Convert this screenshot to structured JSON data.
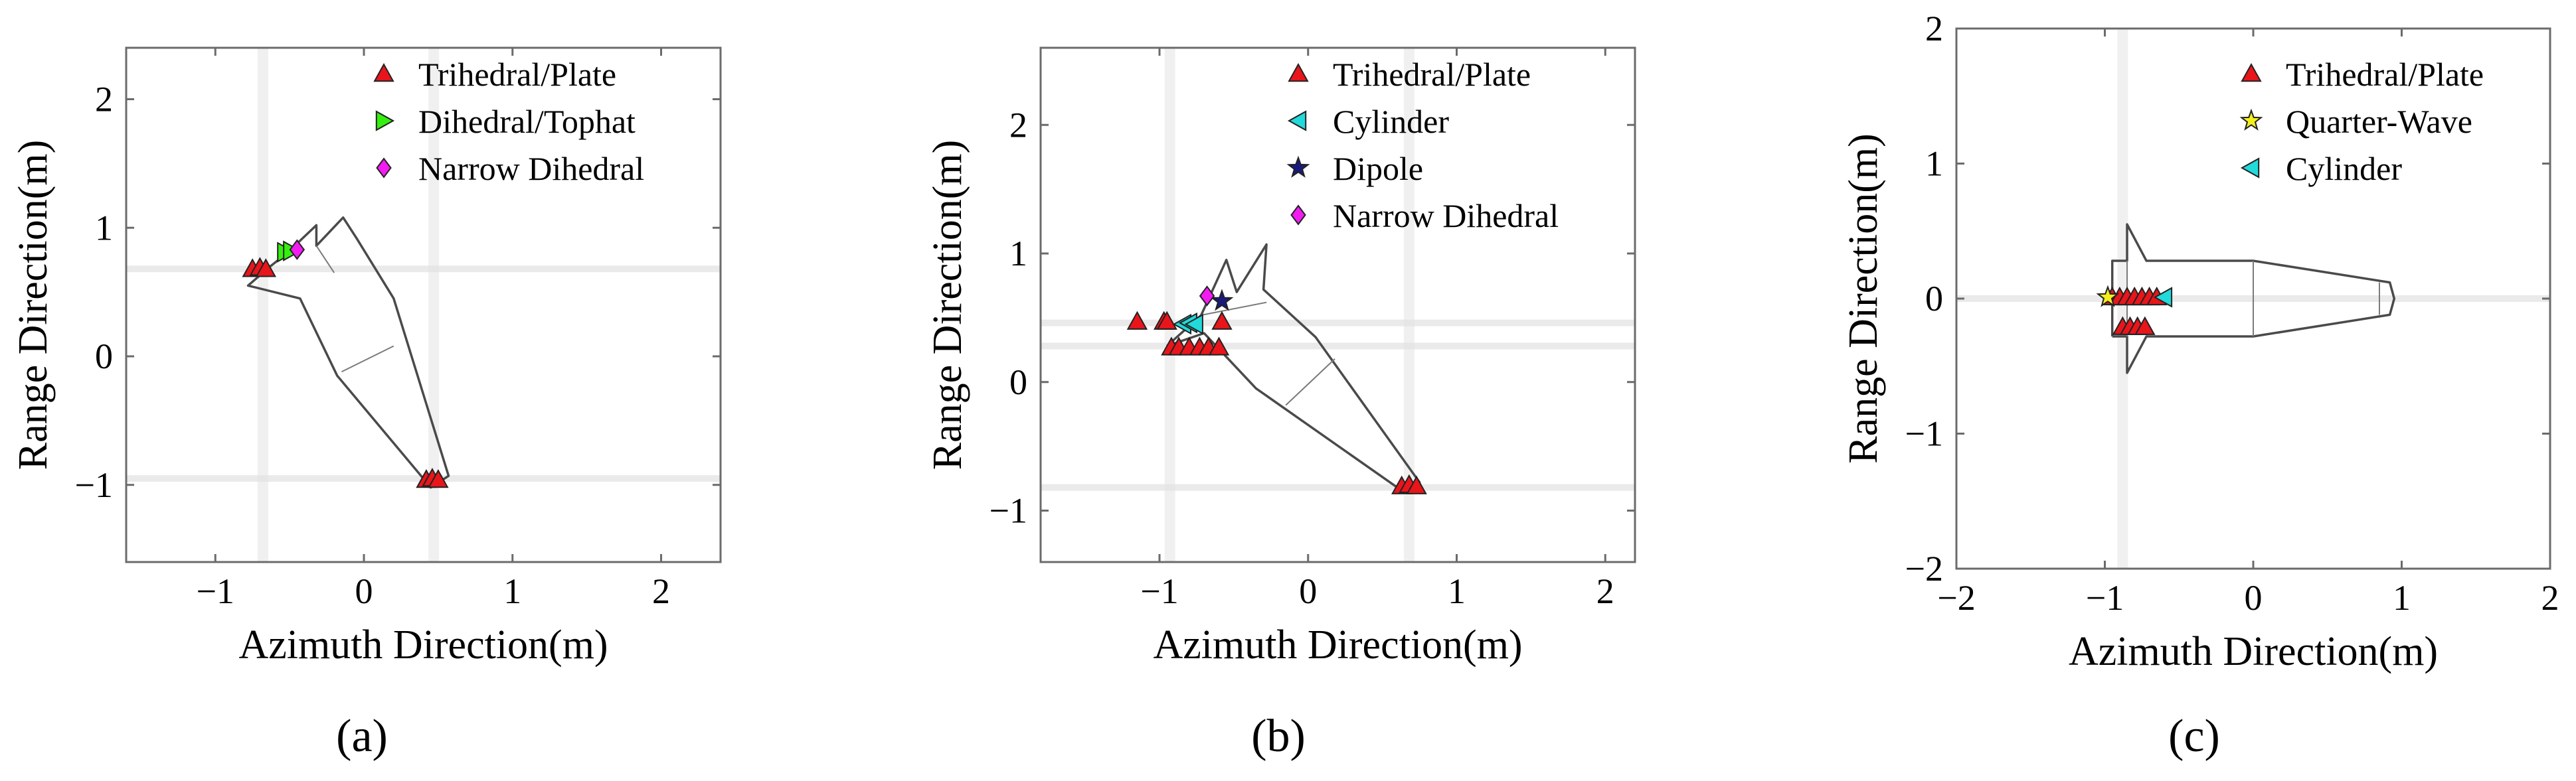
{
  "colors": {
    "trihedral": "#e8151b",
    "dihedral": "#35f00f",
    "narrow_dihedral": "#f21cf2",
    "cylinder": "#22dada",
    "dipole": "#1a1a7c",
    "quarter_wave": "#f5ef1e"
  },
  "chart_data": [
    {
      "type": "scatter",
      "panel": "(a)",
      "xlabel": "Azimuth Direction(m)",
      "ylabel": "Range Direction(m)",
      "xlim": [
        -1.6,
        2.4
      ],
      "ylim": [
        -1.6,
        2.4
      ],
      "xticks": [
        -1,
        0,
        1,
        2
      ],
      "xtick_labels": [
        "−1",
        "0",
        "1",
        "2"
      ],
      "yticks": [
        -1,
        0,
        1,
        2
      ],
      "ytick_labels": [
        "−1",
        "0",
        "1",
        "2"
      ],
      "legend_position": "top-right",
      "outline": [
        [
          -0.63,
          0.7
        ],
        [
          -0.52,
          0.8
        ],
        [
          -0.32,
          1.02
        ],
        [
          -0.32,
          0.86
        ],
        [
          -0.14,
          1.08
        ],
        [
          -0.05,
          0.92
        ],
        [
          0.2,
          0.45
        ],
        [
          0.57,
          -0.93
        ],
        [
          0.45,
          -1.02
        ],
        [
          -0.18,
          -0.15
        ],
        [
          -0.43,
          0.45
        ],
        [
          -0.78,
          0.55
        ],
        [
          -0.63,
          0.7
        ]
      ],
      "inner_lines": [
        [
          [
            -0.15,
            -0.12
          ],
          [
            0.2,
            0.08
          ]
        ],
        [
          [
            -0.32,
            0.86
          ],
          [
            -0.2,
            0.65
          ]
        ]
      ],
      "streaks_h": [
        0.68,
        -0.95
      ],
      "streaks_v": [
        -0.68,
        0.47
      ],
      "series": [
        {
          "name": "Trihedral/Plate",
          "marker": "triangle-up",
          "color_key": "trihedral",
          "x": [
            -0.75,
            -0.7,
            -0.66,
            0.42,
            0.46,
            0.5
          ],
          "y": [
            0.68,
            0.69,
            0.68,
            -0.96,
            -0.95,
            -0.96
          ]
        },
        {
          "name": "Dihedral/Tophat",
          "marker": "triangle-right",
          "color_key": "dihedral",
          "x": [
            -0.53,
            -0.49
          ],
          "y": [
            0.81,
            0.82
          ]
        },
        {
          "name": "Narrow Dihedral",
          "marker": "diamond",
          "color_key": "narrow_dihedral",
          "x": [
            -0.45
          ],
          "y": [
            0.83
          ]
        }
      ]
    },
    {
      "type": "scatter",
      "panel": "(b)",
      "xlabel": "Azimuth Direction(m)",
      "ylabel": "Range Direction(m)",
      "xlim": [
        -1.8,
        2.2
      ],
      "ylim": [
        -1.4,
        2.6
      ],
      "xticks": [
        -1,
        0,
        1,
        2
      ],
      "xtick_labels": [
        "−1",
        "0",
        "1",
        "2"
      ],
      "yticks": [
        -1,
        0,
        1,
        2
      ],
      "ytick_labels": [
        "−1",
        "0",
        "1",
        "2"
      ],
      "legend_position": "top-right",
      "outline": [
        [
          -0.95,
          0.28
        ],
        [
          -0.72,
          0.52
        ],
        [
          -0.55,
          0.95
        ],
        [
          -0.48,
          0.7
        ],
        [
          -0.28,
          1.07
        ],
        [
          -0.3,
          0.72
        ],
        [
          0.05,
          0.35
        ],
        [
          0.75,
          -0.78
        ],
        [
          0.6,
          -0.82
        ],
        [
          -0.35,
          -0.05
        ],
        [
          -0.7,
          0.38
        ],
        [
          -0.95,
          0.28
        ]
      ],
      "inner_lines": [
        [
          [
            -0.15,
            -0.18
          ],
          [
            0.18,
            0.18
          ]
        ],
        [
          [
            -0.72,
            0.52
          ],
          [
            -0.28,
            0.62
          ]
        ]
      ],
      "streaks_h": [
        0.46,
        0.28,
        -0.82
      ],
      "streaks_v": [
        -0.93,
        0.68
      ],
      "series": [
        {
          "name": "Trihedral/Plate",
          "marker": "triangle-up",
          "color_key": "trihedral",
          "x": [
            -1.15,
            -0.97,
            -0.92,
            -0.87,
            -0.8,
            -0.73,
            -0.67,
            -0.6,
            -0.95,
            -0.58,
            0.63,
            0.68,
            0.73
          ],
          "y": [
            0.47,
            0.47,
            0.27,
            0.27,
            0.27,
            0.27,
            0.27,
            0.27,
            0.47,
            0.47,
            -0.81,
            -0.8,
            -0.81
          ]
        },
        {
          "name": "Cylinder",
          "marker": "triangle-left",
          "color_key": "cylinder",
          "x": [
            -0.84,
            -0.8,
            -0.76
          ],
          "y": [
            0.45,
            0.46,
            0.45
          ]
        },
        {
          "name": "Dipole",
          "marker": "star",
          "color_key": "dipole",
          "x": [
            -0.58
          ],
          "y": [
            0.63
          ]
        },
        {
          "name": "Narrow Dihedral",
          "marker": "diamond",
          "color_key": "narrow_dihedral",
          "x": [
            -0.68
          ],
          "y": [
            0.67
          ]
        }
      ]
    },
    {
      "type": "scatter",
      "panel": "(c)",
      "xlabel": "Azimuth Direction(m)",
      "ylabel": "Range Direction(m)",
      "xlim": [
        -2,
        2
      ],
      "ylim": [
        -2,
        2
      ],
      "xticks": [
        -2,
        -1,
        0,
        1,
        2
      ],
      "xtick_labels": [
        "−2",
        "−1",
        "0",
        "1",
        "2"
      ],
      "yticks": [
        -2,
        -1,
        0,
        1,
        2
      ],
      "ytick_labels": [
        "−2",
        "−1",
        "0",
        "1",
        "2"
      ],
      "legend_position": "top-right",
      "outline": [
        [
          -0.95,
          -0.28
        ],
        [
          -0.85,
          -0.28
        ],
        [
          -0.85,
          -0.55
        ],
        [
          -0.72,
          -0.28
        ],
        [
          0.0,
          -0.28
        ],
        [
          0.92,
          -0.12
        ],
        [
          0.95,
          0.0
        ],
        [
          0.92,
          0.12
        ],
        [
          0.0,
          0.28
        ],
        [
          -0.72,
          0.28
        ],
        [
          -0.85,
          0.55
        ],
        [
          -0.85,
          0.28
        ],
        [
          -0.95,
          0.28
        ],
        [
          -0.95,
          -0.28
        ]
      ],
      "inner_lines": [
        [
          [
            -0.85,
            -0.28
          ],
          [
            -0.85,
            0.28
          ]
        ],
        [
          [
            0.0,
            -0.28
          ],
          [
            0.0,
            0.28
          ]
        ],
        [
          [
            0.85,
            -0.12
          ],
          [
            0.85,
            0.12
          ]
        ]
      ],
      "streaks_h": [
        0.0
      ],
      "streaks_v": [
        -0.88
      ],
      "series": [
        {
          "name": "Trihedral/Plate",
          "marker": "triangle-up",
          "color_key": "trihedral",
          "x": [
            -0.95,
            -0.9,
            -0.85,
            -0.8,
            -0.75,
            -0.7,
            -0.65,
            -0.88,
            -0.83,
            -0.78,
            -0.73
          ],
          "y": [
            0.01,
            0.01,
            0.01,
            0.01,
            0.01,
            0.01,
            0.01,
            -0.21,
            -0.21,
            -0.21,
            -0.21
          ]
        },
        {
          "name": "Quarter-Wave",
          "marker": "star",
          "color_key": "quarter_wave",
          "x": [
            -0.98
          ],
          "y": [
            0.01
          ]
        },
        {
          "name": "Cylinder",
          "marker": "triangle-left",
          "color_key": "cylinder",
          "x": [
            -0.6
          ],
          "y": [
            0.01
          ]
        }
      ]
    }
  ]
}
